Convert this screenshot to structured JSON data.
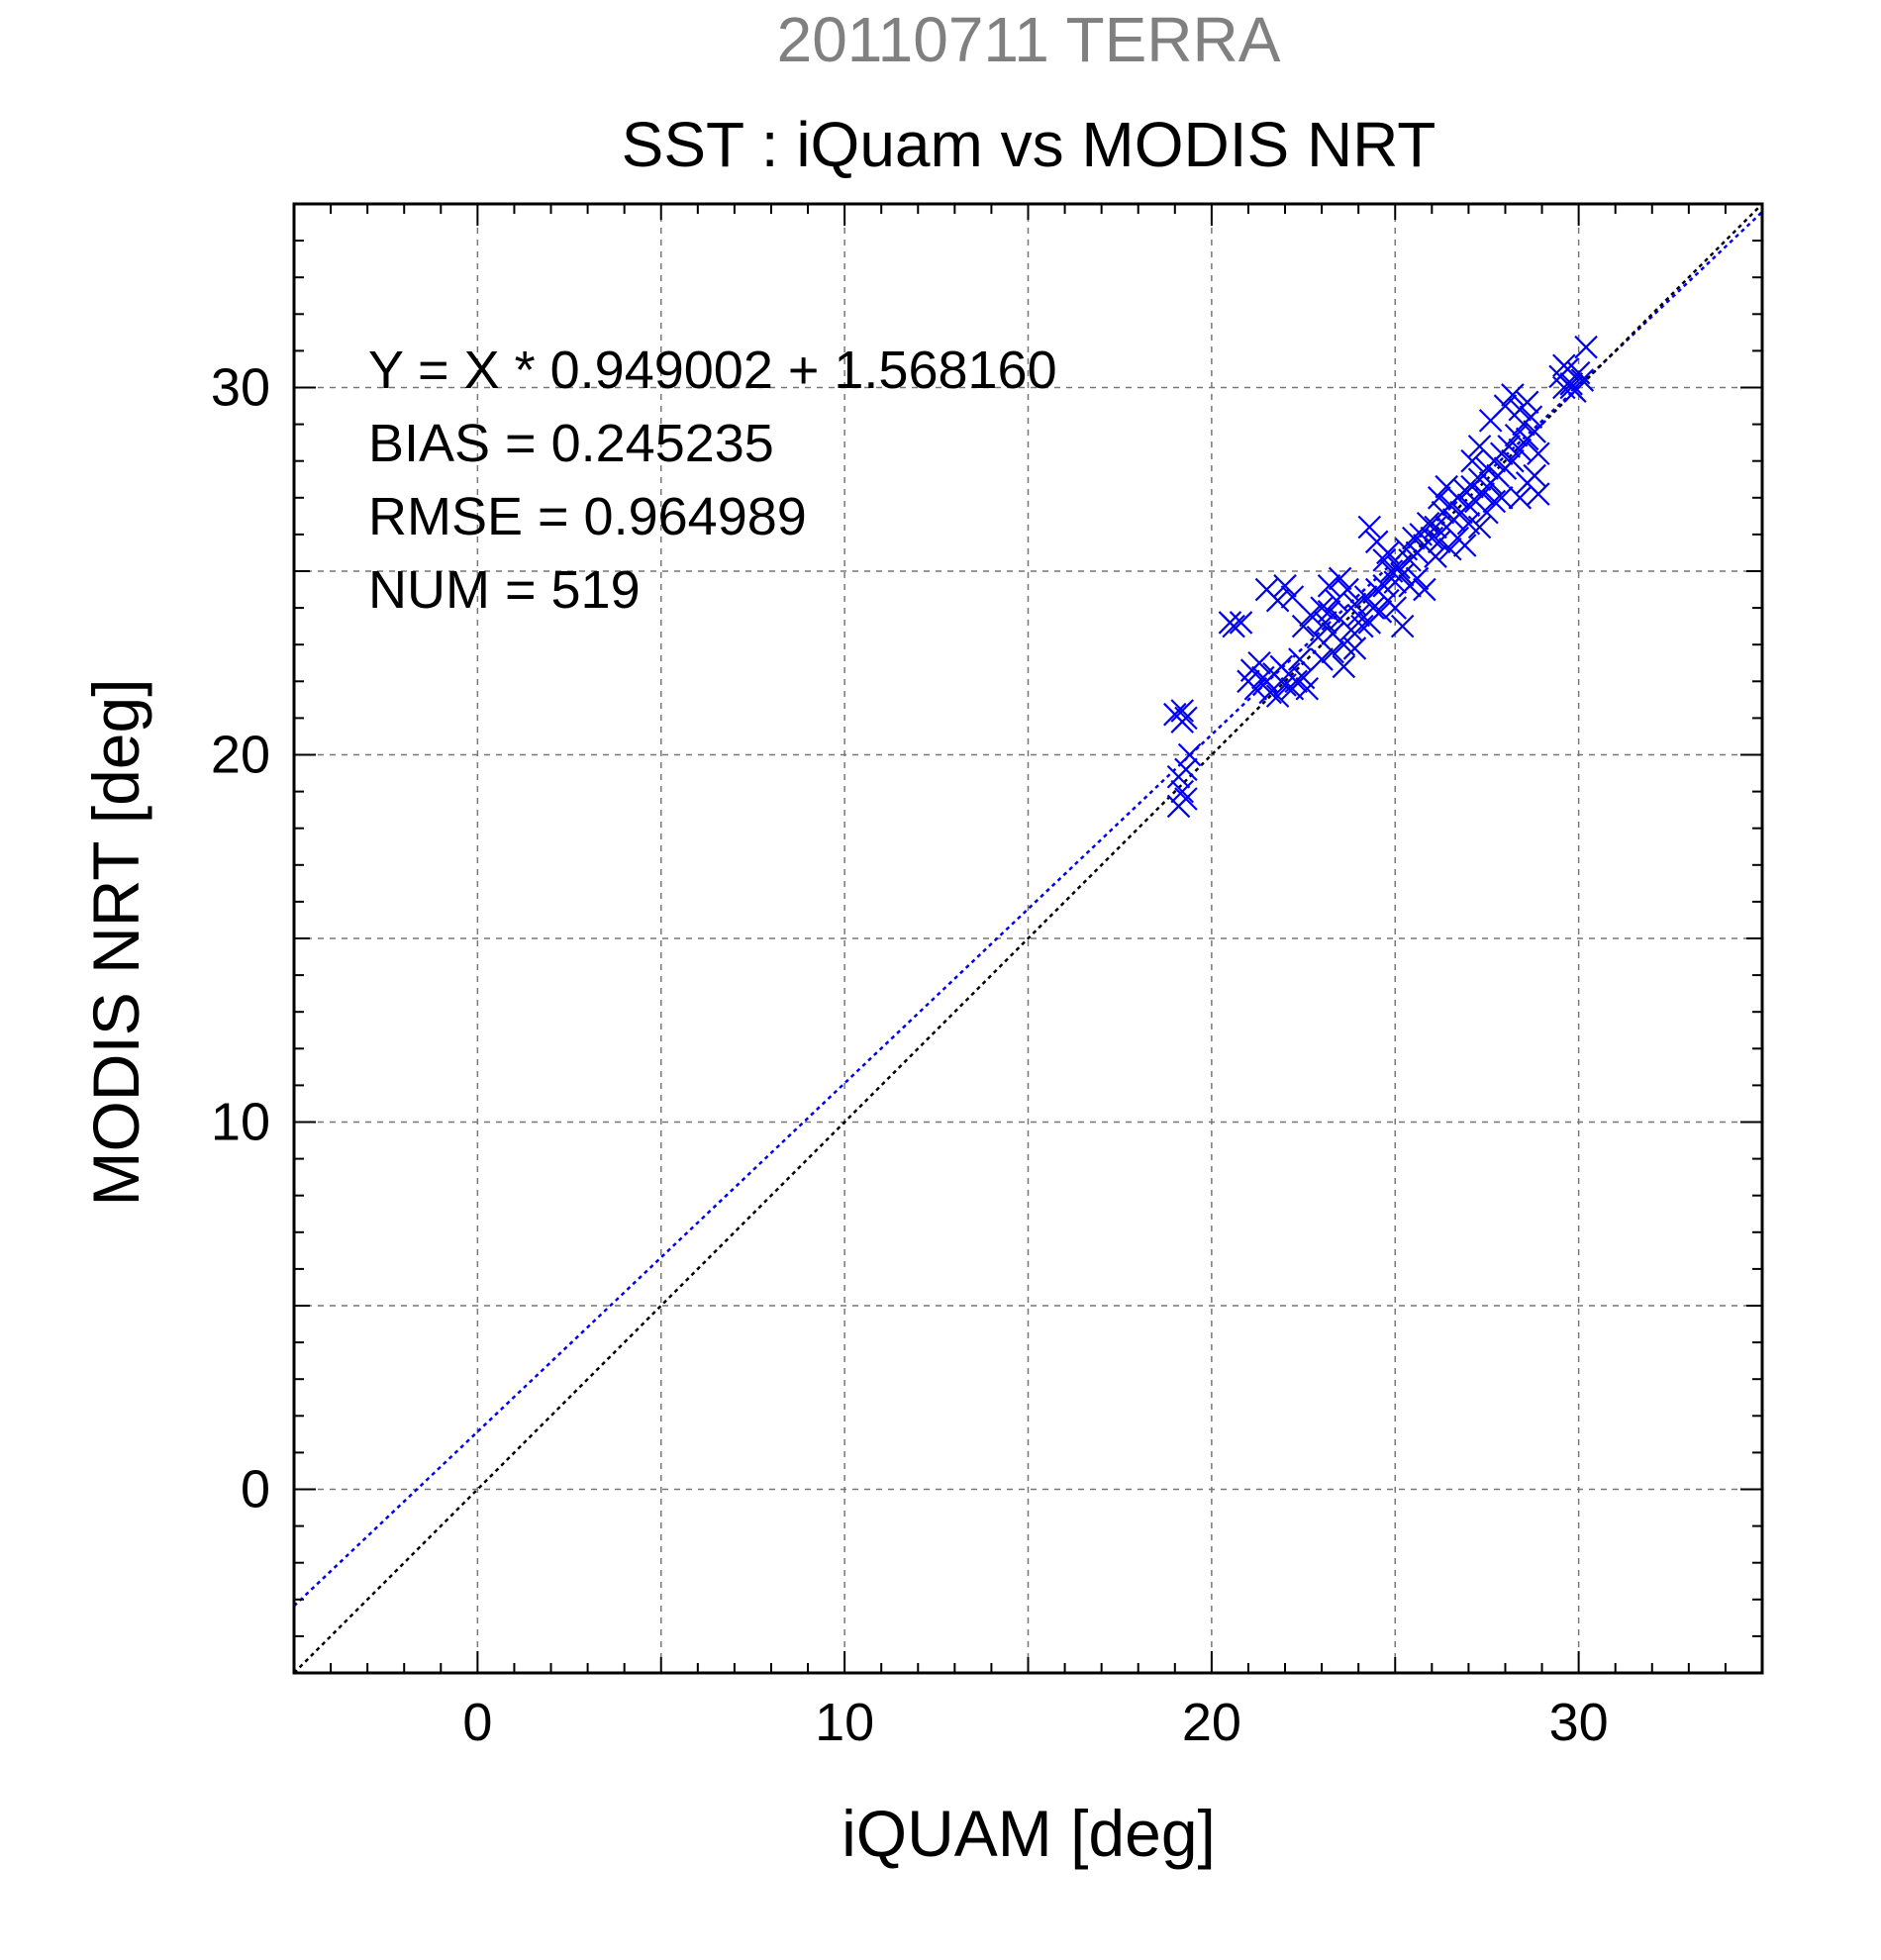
{
  "header": {
    "supertitle": "20110711 TERRA",
    "title": "SST : iQuam vs MODIS NRT"
  },
  "stats": {
    "line1": "Y = X * 0.949002 + 1.568160",
    "line2": "BIAS = 0.245235",
    "line3": "RMSE = 0.964989",
    "line4": "NUM = 519"
  },
  "colors": {
    "supertitle": "#808080",
    "points": "#0000ee",
    "fit_line": "#0000ee",
    "identity_line": "#000000",
    "grid": "#777777"
  },
  "chart_data": {
    "type": "scatter",
    "xlabel": "iQUAM [deg]",
    "ylabel": "MODIS NRT [deg]",
    "xlim": [
      -5,
      35
    ],
    "ylim": [
      -5,
      35
    ],
    "xticks": [
      0,
      10,
      20,
      30
    ],
    "yticks": [
      0,
      10,
      20,
      30
    ],
    "grid": true,
    "marker": "x",
    "lines": [
      {
        "kind": "fit",
        "slope": 0.949002,
        "intercept": 1.56816,
        "style": "dotted",
        "color": "#0000ee"
      },
      {
        "kind": "one-to-one",
        "slope": 1,
        "intercept": 0,
        "style": "dotted",
        "color": "#000000"
      }
    ],
    "series": [
      {
        "points": [
          [
            19.0,
            21.1
          ],
          [
            19.2,
            20.9
          ],
          [
            19.3,
            21.0
          ],
          [
            19.1,
            19.4
          ],
          [
            19.2,
            19.0
          ],
          [
            19.1,
            18.6
          ],
          [
            19.3,
            18.8
          ],
          [
            19.3,
            19.6
          ],
          [
            19.4,
            20.0
          ],
          [
            19.2,
            21.2
          ],
          [
            20.5,
            23.6
          ],
          [
            20.6,
            23.5
          ],
          [
            20.8,
            23.6
          ],
          [
            21.0,
            22.0
          ],
          [
            21.1,
            22.3
          ],
          [
            21.2,
            21.8
          ],
          [
            21.3,
            22.5
          ],
          [
            21.4,
            22.1
          ],
          [
            21.5,
            22.0
          ],
          [
            21.6,
            21.7
          ],
          [
            21.7,
            22.2
          ],
          [
            21.8,
            21.6
          ],
          [
            21.9,
            22.4
          ],
          [
            22.0,
            21.9
          ],
          [
            22.1,
            22.2
          ],
          [
            22.2,
            21.8
          ],
          [
            22.3,
            22.0
          ],
          [
            22.4,
            22.6
          ],
          [
            22.5,
            22.1
          ],
          [
            22.6,
            21.8
          ],
          [
            21.5,
            24.5
          ],
          [
            21.8,
            24.2
          ],
          [
            22.0,
            24.6
          ],
          [
            22.2,
            24.3
          ],
          [
            22.5,
            23.5
          ],
          [
            22.7,
            23.8
          ],
          [
            22.9,
            23.2
          ],
          [
            23.0,
            24.0
          ],
          [
            23.1,
            23.6
          ],
          [
            23.2,
            23.9
          ],
          [
            23.3,
            23.3
          ],
          [
            23.4,
            24.2
          ],
          [
            23.5,
            23.7
          ],
          [
            23.6,
            23.0
          ],
          [
            23.7,
            24.5
          ],
          [
            23.8,
            23.4
          ],
          [
            23.9,
            24.1
          ],
          [
            24.0,
            23.8
          ],
          [
            24.1,
            23.5
          ],
          [
            24.2,
            24.3
          ],
          [
            23.5,
            24.8
          ],
          [
            23.2,
            24.6
          ],
          [
            23.0,
            22.6
          ],
          [
            23.3,
            22.8
          ],
          [
            23.6,
            22.4
          ],
          [
            23.9,
            22.9
          ],
          [
            24.3,
            23.6
          ],
          [
            24.4,
            24.0
          ],
          [
            24.5,
            24.5
          ],
          [
            24.6,
            23.9
          ],
          [
            24.7,
            24.6
          ],
          [
            24.8,
            24.2
          ],
          [
            24.9,
            25.0
          ],
          [
            25.0,
            24.7
          ],
          [
            24.7,
            25.3
          ],
          [
            24.5,
            25.8
          ],
          [
            24.3,
            26.2
          ],
          [
            24.8,
            25.5
          ],
          [
            25.1,
            25.1
          ],
          [
            25.2,
            24.9
          ],
          [
            25.3,
            25.6
          ],
          [
            25.4,
            25.3
          ],
          [
            25.5,
            25.9
          ],
          [
            25.6,
            25.5
          ],
          [
            25.7,
            26.0
          ],
          [
            25.8,
            25.7
          ],
          [
            25.9,
            26.3
          ],
          [
            26.0,
            25.9
          ],
          [
            25.4,
            24.6
          ],
          [
            25.6,
            24.8
          ],
          [
            25.0,
            24.0
          ],
          [
            25.2,
            23.5
          ],
          [
            25.8,
            24.5
          ],
          [
            26.1,
            25.4
          ],
          [
            26.1,
            26.2
          ],
          [
            26.2,
            25.8
          ],
          [
            26.3,
            26.6
          ],
          [
            26.4,
            26.2
          ],
          [
            26.5,
            26.8
          ],
          [
            26.6,
            26.4
          ],
          [
            26.7,
            27.0
          ],
          [
            26.8,
            26.6
          ],
          [
            26.9,
            27.2
          ],
          [
            27.0,
            26.8
          ],
          [
            26.2,
            27.0
          ],
          [
            26.4,
            27.3
          ],
          [
            26.5,
            25.6
          ],
          [
            26.7,
            25.9
          ],
          [
            26.9,
            25.7
          ],
          [
            27.0,
            26.3
          ],
          [
            27.1,
            27.3
          ],
          [
            27.2,
            26.9
          ],
          [
            27.3,
            27.5
          ],
          [
            27.4,
            27.1
          ],
          [
            27.5,
            27.8
          ],
          [
            27.6,
            27.4
          ],
          [
            27.7,
            28.0
          ],
          [
            27.8,
            27.6
          ],
          [
            27.9,
            28.2
          ],
          [
            28.0,
            27.8
          ],
          [
            27.3,
            26.2
          ],
          [
            27.5,
            26.6
          ],
          [
            27.7,
            26.9
          ],
          [
            27.9,
            27.0
          ],
          [
            28.1,
            28.4
          ],
          [
            28.2,
            28.0
          ],
          [
            28.3,
            28.7
          ],
          [
            28.4,
            28.3
          ],
          [
            28.5,
            29.0
          ],
          [
            28.6,
            28.6
          ],
          [
            28.7,
            29.2
          ],
          [
            28.8,
            28.8
          ],
          [
            28.0,
            29.5
          ],
          [
            28.2,
            29.8
          ],
          [
            28.4,
            29.4
          ],
          [
            28.6,
            29.6
          ],
          [
            28.8,
            27.6
          ],
          [
            28.9,
            27.1
          ],
          [
            28.6,
            27.4
          ],
          [
            28.4,
            27.0
          ],
          [
            27.6,
            29.1
          ],
          [
            27.3,
            28.4
          ],
          [
            27.1,
            28.0
          ],
          [
            28.9,
            28.2
          ],
          [
            29.5,
            30.3
          ],
          [
            29.6,
            30.0
          ],
          [
            29.7,
            30.5
          ],
          [
            29.8,
            30.1
          ],
          [
            29.9,
            29.9
          ],
          [
            30.0,
            30.4
          ],
          [
            30.1,
            30.2
          ],
          [
            30.2,
            31.1
          ],
          [
            29.6,
            30.6
          ],
          [
            29.8,
            30.0
          ]
        ]
      }
    ]
  }
}
